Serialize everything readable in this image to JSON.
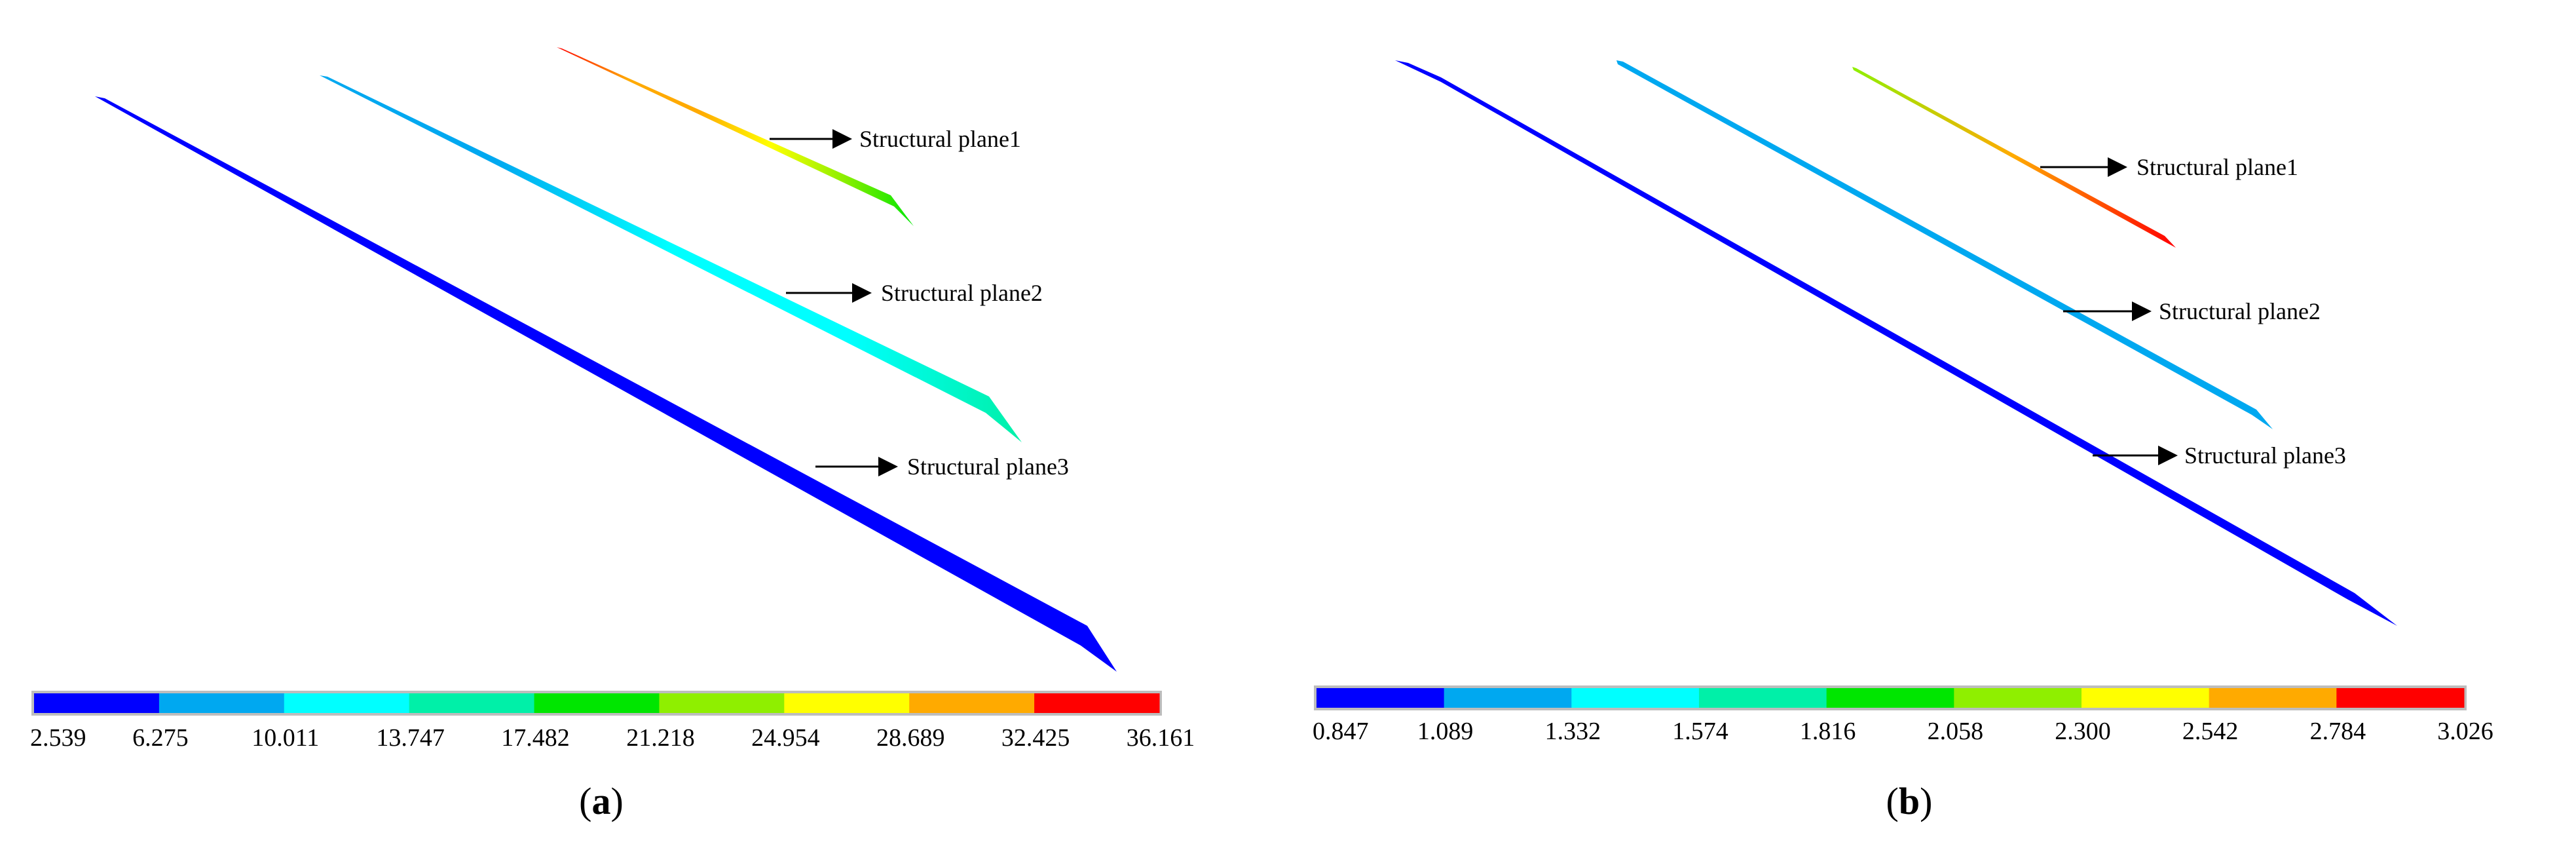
{
  "panels": [
    {
      "id": "a",
      "caption_open": "(",
      "caption_letter": "a",
      "caption_close": ")",
      "plane_labels": [
        "Structural plane1",
        "Structural plane2",
        "Structural plane3"
      ],
      "colorbar": {
        "colors": [
          "#0000ff",
          "#00a8f0",
          "#00ffff",
          "#00f0a8",
          "#00e600",
          "#8fef00",
          "#ffff00",
          "#ffaa00",
          "#ff0000"
        ],
        "ticks": [
          "2.539",
          "6.275",
          "10.011",
          "13.747",
          "17.482",
          "21.218",
          "24.954",
          "28.689",
          "32.425",
          "36.161"
        ]
      },
      "plane_colors": {
        "plane1": [
          "#ff0000",
          "#ffaa00",
          "#ffaa00",
          "#ffff00",
          "#8fef00",
          "#00e600"
        ],
        "plane2": [
          "#00a8f0",
          "#00a8f0",
          "#00ffff",
          "#00ffff",
          "#00f0a8"
        ],
        "plane3": [
          "#0000ff"
        ]
      }
    },
    {
      "id": "b",
      "caption_open": "(",
      "caption_letter": "b",
      "caption_close": ")",
      "plane_labels": [
        "Structural plane1",
        "Structural plane2",
        "Structural plane3"
      ],
      "colorbar": {
        "colors": [
          "#0000ff",
          "#00a8f0",
          "#00ffff",
          "#00f0a8",
          "#00e600",
          "#8fef00",
          "#ffff00",
          "#ffaa00",
          "#ff0000"
        ],
        "ticks": [
          "0.847",
          "1.089",
          "1.332",
          "1.574",
          "1.816",
          "2.058",
          "2.300",
          "2.542",
          "2.784",
          "3.026"
        ]
      },
      "plane_colors": {
        "plane1": [
          "#8fef00",
          "#ffaa00",
          "#ff0000"
        ],
        "plane2": [
          "#00a8f0",
          "#00a8f0"
        ],
        "plane3": [
          "#0000ff"
        ]
      }
    }
  ]
}
